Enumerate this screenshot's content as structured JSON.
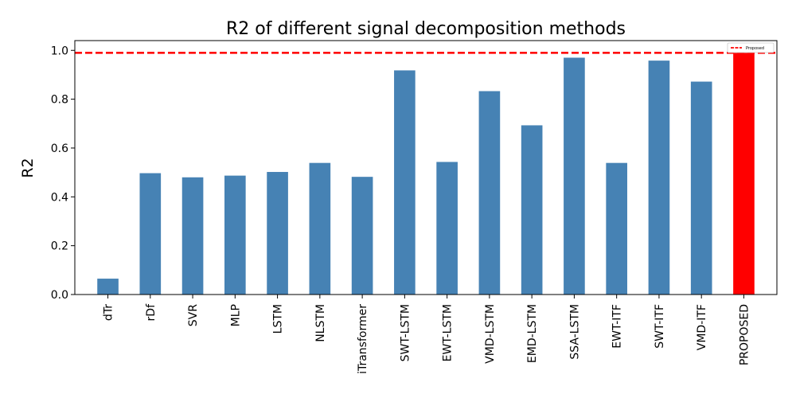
{
  "chart_data": {
    "type": "bar",
    "title": "R2 of different signal decomposition methods",
    "xlabel": "",
    "ylabel": "R2",
    "ylim": [
      0,
      1.04
    ],
    "yticks": [
      0.0,
      0.2,
      0.4,
      0.6,
      0.8,
      1.0
    ],
    "ytick_labels": [
      "0.0",
      "0.2",
      "0.4",
      "0.6",
      "0.8",
      "1.0"
    ],
    "categories": [
      "dTr",
      "rDf",
      "SVR",
      "MLP",
      "LSTM",
      "NLSTM",
      "iTransformer",
      "SWT-LSTM",
      "EWT-LSTM",
      "VMD-LSTM",
      "EMD-LSTM",
      "SSA-LSTM",
      "EWT-ITF",
      "SWT-ITF",
      "VMD-ITF",
      "PROPOSED"
    ],
    "values": [
      0.065,
      0.497,
      0.48,
      0.487,
      0.502,
      0.539,
      0.482,
      0.918,
      0.543,
      0.833,
      0.693,
      0.97,
      0.539,
      0.958,
      0.872,
      0.99
    ],
    "bar_colors": [
      "#4682b4",
      "#4682b4",
      "#4682b4",
      "#4682b4",
      "#4682b4",
      "#4682b4",
      "#4682b4",
      "#4682b4",
      "#4682b4",
      "#4682b4",
      "#4682b4",
      "#4682b4",
      "#4682b4",
      "#4682b4",
      "#4682b4",
      "#ff0000"
    ],
    "reference_line": {
      "value": 0.99,
      "label": "Proposed",
      "color": "#ff0000",
      "style": "dashed"
    },
    "legend": {
      "placement": "top-right",
      "entries": [
        "Proposed"
      ]
    },
    "grid": false
  }
}
